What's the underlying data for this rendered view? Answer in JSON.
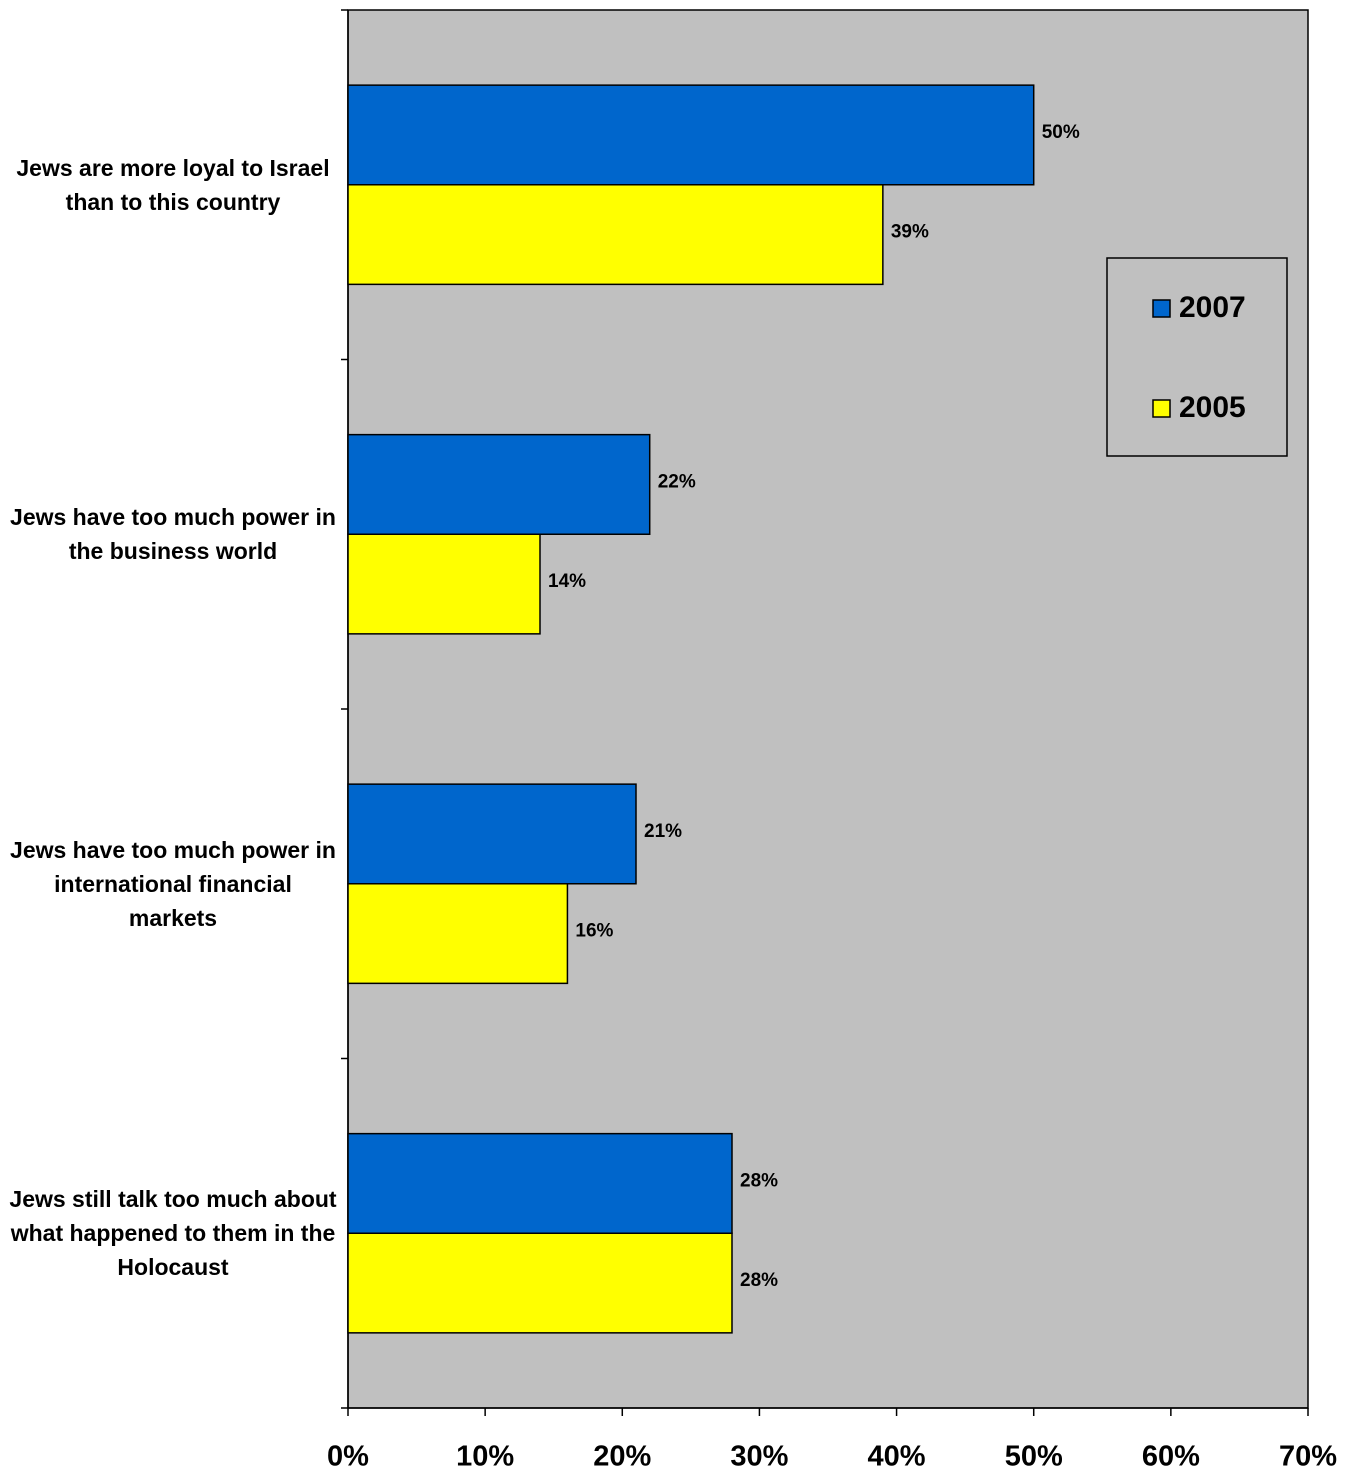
{
  "chart_data": {
    "type": "bar",
    "orientation": "horizontal",
    "categories": [
      "Jews are more loyal to Israel than to this country",
      "Jews have too much power in the business world",
      "Jews have too much power in international financial markets",
      "Jews still talk too much about what happened to them in the Holocaust"
    ],
    "series": [
      {
        "name": "2007",
        "color": "#0066cc",
        "values": [
          50,
          22,
          21,
          28
        ],
        "value_labels": [
          "50%",
          "22%",
          "21%",
          "28%"
        ]
      },
      {
        "name": "2005",
        "color": "#ffff00",
        "values": [
          39,
          14,
          16,
          28
        ],
        "value_labels": [
          "39%",
          "14%",
          "16%",
          "28%"
        ]
      }
    ],
    "xlim": [
      0,
      70
    ],
    "xticks": [
      {
        "value": 0,
        "label": "0%"
      },
      {
        "value": 10,
        "label": "10%"
      },
      {
        "value": 20,
        "label": "20%"
      },
      {
        "value": 30,
        "label": "30%"
      },
      {
        "value": 40,
        "label": "40%"
      },
      {
        "value": 50,
        "label": "50%"
      },
      {
        "value": 60,
        "label": "60%"
      },
      {
        "value": 70,
        "label": "70%"
      }
    ],
    "background": "#c0c0c0",
    "legend": "upper right"
  }
}
